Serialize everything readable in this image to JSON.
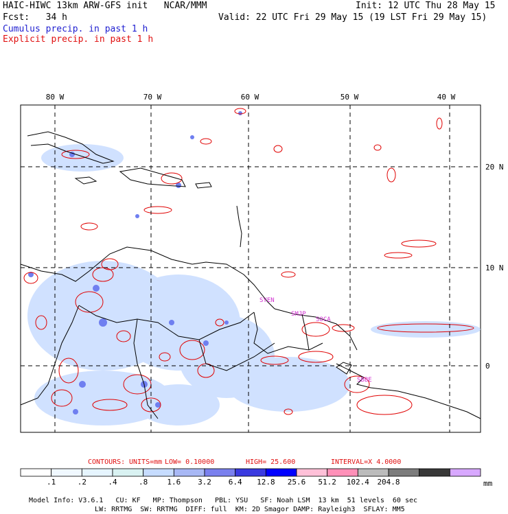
{
  "header": {
    "model_title": "HAIC-HIWC 13km ARW-GFS init   NCAR/MMM",
    "init": "Init: 12 UTC Thu 28 May 15",
    "fcst": "Fcst:   34 h",
    "valid": "Valid: 22 UTC Fri 29 May 15 (19 LST Fri 29 May 15)",
    "legend_cumulus": "Cumulus precip. in past 1 h",
    "legend_explicit": "Explicit precip. in past 1 h"
  },
  "map": {
    "lon_labels": [
      "80 W",
      "70 W",
      "60 W",
      "50 W",
      "40 W"
    ],
    "lat_labels": [
      "20 N",
      "10 N",
      "0"
    ],
    "station_labels": [
      "SYEN",
      "SMJP",
      "SOCA",
      "SBBE"
    ],
    "colors": {
      "cumulus": "#6f7ff0",
      "explicit": "#e00000",
      "coast": "#000000",
      "station": "#d030d0",
      "grid": "#000000"
    }
  },
  "contour_info": {
    "contours": "CONTOURS:",
    "units": "UNITS=mm",
    "low": "LOW=  0.10000",
    "high": "HIGH=  25.600",
    "interval": "INTERVAL=X  4.0000"
  },
  "colorbar": {
    "tick_labels": [
      ".1",
      ".2",
      ".4",
      ".8",
      "1.6",
      "3.2",
      "6.4",
      "12.8",
      "25.6",
      "51.2",
      "102.4",
      "204.8"
    ],
    "unit": "mm",
    "colors": [
      "#ffffff",
      "#f0f8ff",
      "#e6f5ff",
      "#d9f2f2",
      "#c6dcff",
      "#a8b8f5",
      "#7a80ee",
      "#3a3ae0",
      "#0000ff",
      "#ffc0d8",
      "#ff90b8",
      "#bcbcbc",
      "#7c7c7c",
      "#383838",
      "#d8a8ff"
    ]
  },
  "model_info": {
    "line1": [
      "Model Info: V3.6.1",
      "CU: KF",
      "MP: Thompson",
      "PBL: YSU",
      "SF: Noah LSM",
      "13 km",
      "51 levels",
      "60 sec"
    ],
    "line2": [
      "LW: RRTMG",
      "SW: RRTMG",
      "DIFF: full",
      "KM: 2D Smagor",
      "DAMP: Rayleigh3",
      "SFLAY: MM5"
    ]
  }
}
